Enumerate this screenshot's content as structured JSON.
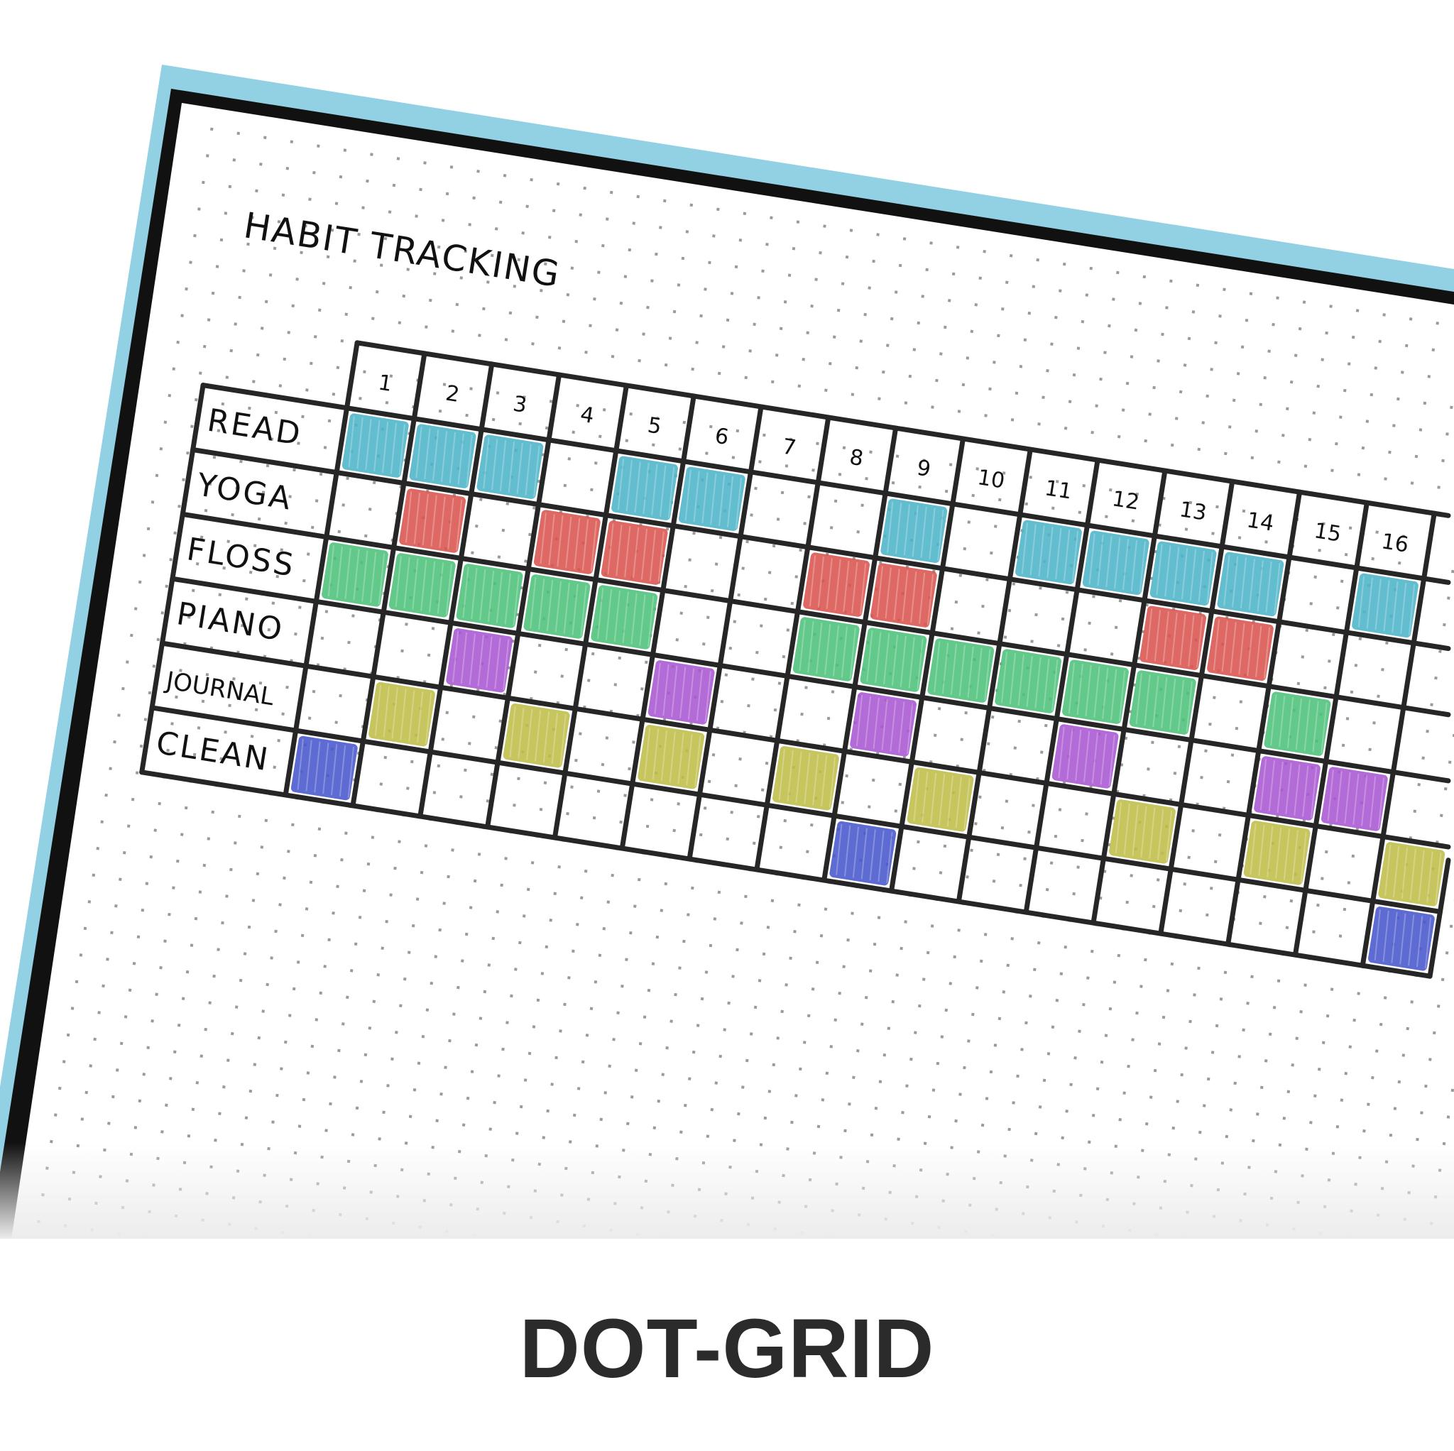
{
  "title": "HABIT TRACKING",
  "caption": "DOT-GRID",
  "colors": {
    "frame": "#92d0e4",
    "border": "#111111",
    "grid_line": "#262626",
    "dot": "#9a9a9a"
  },
  "days": [
    "1",
    "2",
    "3",
    "4",
    "5",
    "6",
    "7",
    "8",
    "9",
    "10",
    "11",
    "12",
    "13",
    "14",
    "15",
    "16"
  ],
  "habits": [
    {
      "name": "READ",
      "color": "#4cb4c7",
      "days": [
        1,
        2,
        3,
        5,
        6,
        9,
        11,
        12,
        13,
        14,
        16
      ]
    },
    {
      "name": "YOGA",
      "color": "#d9544f",
      "days": [
        2,
        4,
        5,
        8,
        9,
        13,
        14
      ]
    },
    {
      "name": "FLOSS",
      "color": "#4cc27a",
      "days": [
        1,
        2,
        3,
        4,
        5,
        8,
        9,
        10,
        11,
        12,
        13,
        15
      ]
    },
    {
      "name": "PIANO",
      "color": "#a956d2",
      "days": [
        3,
        6,
        9,
        12,
        15,
        16
      ]
    },
    {
      "name": "JOURNAL",
      "color": "#bfbd48",
      "days": [
        2,
        4,
        6,
        8,
        10,
        13,
        15,
        17
      ]
    },
    {
      "name": "CLEAN",
      "color": "#4857cc",
      "days": [
        1,
        9,
        17
      ]
    }
  ]
}
